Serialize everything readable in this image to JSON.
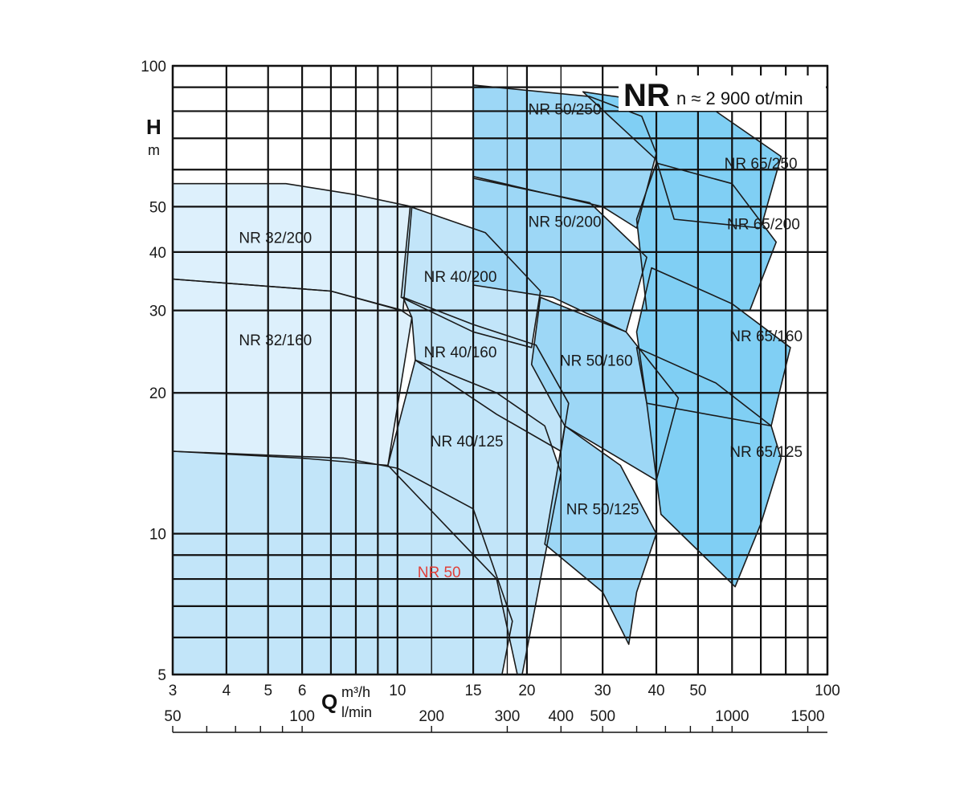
{
  "chart_data": {
    "type": "area",
    "title": "NR",
    "subtitle": "n ≈ 2 900 ot/min",
    "ylabel": "H",
    "yunit": "m",
    "xlabel": "Q",
    "xunit_primary": "m³/h",
    "xunit_secondary": "l/min",
    "x_scale": "log",
    "y_scale": "log",
    "xlim": [
      3,
      100
    ],
    "ylim": [
      5,
      100
    ],
    "x_ticks_m3h": [
      {
        "value": 3,
        "label": "3"
      },
      {
        "value": 4,
        "label": "4"
      },
      {
        "value": 5,
        "label": "5"
      },
      {
        "value": 6,
        "label": "6"
      },
      {
        "value": 10,
        "label": "10"
      },
      {
        "value": 15,
        "label": "15"
      },
      {
        "value": 20,
        "label": "20"
      },
      {
        "value": 30,
        "label": "30"
      },
      {
        "value": 40,
        "label": "40"
      },
      {
        "value": 50,
        "label": "50"
      },
      {
        "value": 100,
        "label": "100"
      }
    ],
    "x_ticks_lmin": [
      {
        "value": 50,
        "label": "50"
      },
      {
        "value": 100,
        "label": "100"
      },
      {
        "value": 200,
        "label": "200"
      },
      {
        "value": 300,
        "label": "300"
      },
      {
        "value": 400,
        "label": "400"
      },
      {
        "value": 500,
        "label": "500"
      },
      {
        "value": 1000,
        "label": "1000"
      },
      {
        "value": 1500,
        "label": "1500"
      }
    ],
    "x_minor_m3h": [
      7,
      8,
      9,
      60,
      70,
      80,
      90
    ],
    "y_ticks": [
      {
        "value": 5,
        "label": "5"
      },
      {
        "value": 10,
        "label": "10"
      },
      {
        "value": 20,
        "label": "20"
      },
      {
        "value": 30,
        "label": "30"
      },
      {
        "value": 40,
        "label": "40"
      },
      {
        "value": 50,
        "label": "50"
      },
      {
        "value": 100,
        "label": "100"
      }
    ],
    "y_minor": [
      6,
      7,
      8,
      9,
      60,
      70,
      80,
      90
    ],
    "colors": {
      "NR 32": "#ddf0fc",
      "NR 40": "#c2e5f9",
      "NR 50": "#9dd7f6",
      "NR 65": "#80cff4",
      "NR 50 small": "#c2e5f9",
      "label_red": "#e0403a"
    },
    "series": [
      {
        "name": "NR 65/250",
        "label": "NR 65/250",
        "label_at": [
          70,
          62
        ],
        "color_key": "NR 65",
        "outline": [
          [
            27,
            88
          ],
          [
            55,
            80
          ],
          [
            78,
            64
          ],
          [
            70,
            45
          ],
          [
            44,
            47
          ],
          [
            40,
            63
          ]
        ]
      },
      {
        "name": "NR 65/200",
        "label": "NR 65/200",
        "label_at": [
          71,
          46
        ],
        "color_key": "NR 65",
        "outline": [
          [
            40,
            62
          ],
          [
            60,
            56
          ],
          [
            76,
            42
          ],
          [
            66,
            30
          ],
          [
            38,
            30
          ],
          [
            36,
            47
          ]
        ]
      },
      {
        "name": "NR 65/160",
        "label": "NR 65/160",
        "label_at": [
          72,
          26.5
        ],
        "color_key": "NR 65",
        "outline": [
          [
            39,
            37
          ],
          [
            60,
            31
          ],
          [
            82,
            25
          ],
          [
            74,
            17
          ],
          [
            38,
            19
          ],
          [
            36,
            27
          ]
        ]
      },
      {
        "name": "NR 65/125",
        "label": "NR 65/125",
        "label_at": [
          72,
          15
        ],
        "color_key": "NR 65",
        "outline": [
          [
            36,
            25
          ],
          [
            55,
            21
          ],
          [
            74,
            17
          ],
          [
            78,
            14.5
          ],
          [
            70,
            10.5
          ],
          [
            61,
            7.7
          ],
          [
            41,
            11
          ],
          [
            38,
            19
          ]
        ]
      },
      {
        "name": "NR 50/250",
        "label": "NR 50/250",
        "label_at": [
          24.5,
          81
        ],
        "color_key": "NR 50",
        "outline": [
          [
            15,
            91
          ],
          [
            28,
            86
          ],
          [
            37,
            78
          ],
          [
            40,
            65
          ],
          [
            36,
            45
          ],
          [
            30,
            50
          ],
          [
            15,
            58
          ]
        ]
      },
      {
        "name": "NR 50/200",
        "label": "NR 50/200",
        "label_at": [
          24.5,
          46.5
        ],
        "color_key": "NR 50",
        "outline": [
          [
            15,
            57.5
          ],
          [
            28,
            51
          ],
          [
            38,
            39
          ],
          [
            34,
            27
          ],
          [
            23,
            32
          ],
          [
            15,
            34
          ]
        ]
      },
      {
        "name": "NR 50/160",
        "label": "NR 50/160",
        "label_at": [
          29,
          23.5
        ],
        "color_key": "NR 50",
        "outline": [
          [
            21.5,
            32
          ],
          [
            34,
            27
          ],
          [
            45,
            19.5
          ],
          [
            40,
            13
          ],
          [
            24.5,
            17
          ],
          [
            20.5,
            23
          ]
        ]
      },
      {
        "name": "NR 50/125",
        "label": "NR 50/125",
        "label_at": [
          30,
          11.3
        ],
        "color_key": "NR 50",
        "outline": [
          [
            24.5,
            17
          ],
          [
            33,
            14
          ],
          [
            40,
            10
          ],
          [
            36,
            7.5
          ],
          [
            34.5,
            5.8
          ],
          [
            30,
            7.5
          ],
          [
            22,
            9.5
          ]
        ]
      },
      {
        "name": "NR 40/200",
        "label": "NR 40/200",
        "label_at": [
          14,
          35.5
        ],
        "color_key": "NR 40",
        "outline": [
          [
            10.7,
            50
          ],
          [
            16,
            44
          ],
          [
            21.5,
            33
          ],
          [
            20.5,
            25
          ],
          [
            15,
            27
          ],
          [
            10.2,
            32
          ]
        ]
      },
      {
        "name": "NR 40/160",
        "label": "NR 40/160",
        "label_at": [
          14,
          24.5
        ],
        "color_key": "NR 40",
        "outline": [
          [
            10.3,
            32
          ],
          [
            15,
            28
          ],
          [
            21,
            25.3
          ],
          [
            25,
            19
          ],
          [
            24,
            15
          ],
          [
            17,
            18
          ],
          [
            11,
            23.5
          ],
          [
            10.8,
            29
          ]
        ]
      },
      {
        "name": "NR 40/125",
        "label": "NR 40/125",
        "label_at": [
          14.5,
          15.8
        ],
        "color_key": "NR 40",
        "outline": [
          [
            11,
            23.5
          ],
          [
            17,
            20
          ],
          [
            22,
            17
          ],
          [
            24,
            13.5
          ],
          [
            19.5,
            5
          ],
          [
            19,
            5
          ],
          [
            17,
            8
          ],
          [
            9.5,
            14
          ]
        ]
      },
      {
        "name": "NR 32/200",
        "label": "NR 32/200",
        "label_at": [
          5.2,
          43
        ],
        "color_key": "NR 32",
        "outline": [
          [
            3,
            56
          ],
          [
            5.5,
            56
          ],
          [
            8,
            53
          ],
          [
            10.8,
            50
          ],
          [
            10.3,
            30
          ],
          [
            7,
            33
          ],
          [
            3,
            35
          ]
        ]
      },
      {
        "name": "NR 32/160",
        "label": "NR 32/160",
        "label_at": [
          5.2,
          26
        ],
        "color_key": "NR 32",
        "outline": [
          [
            3,
            35
          ],
          [
            7,
            33
          ],
          [
            10.2,
            30
          ],
          [
            10.8,
            29
          ],
          [
            9.5,
            14
          ],
          [
            6,
            14.5
          ],
          [
            3,
            15
          ]
        ]
      },
      {
        "name": "NR 50",
        "label": "NR 50",
        "label_at": [
          12.5,
          8.3
        ],
        "label_color": "#e0403a",
        "color_key": "NR 50 small",
        "outline": [
          [
            3,
            15
          ],
          [
            7.5,
            14.5
          ],
          [
            10,
            13.8
          ],
          [
            15,
            11.3
          ],
          [
            18.5,
            6.5
          ],
          [
            17.5,
            5
          ],
          [
            3,
            5
          ]
        ]
      }
    ]
  }
}
